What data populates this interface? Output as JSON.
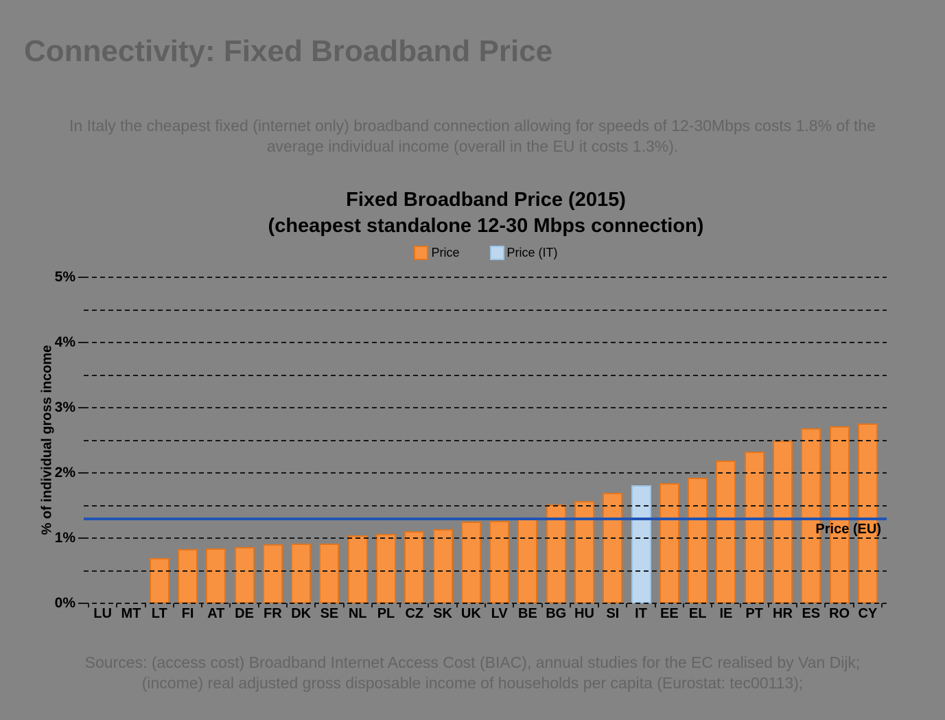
{
  "page": {
    "title": "Connectivity: Fixed Broadband Price",
    "intro_line1": "In Italy the cheapest fixed (internet only) broadband connection allowing for speeds of 12-30Mbps costs 1.8% of the",
    "intro_line2": "average individual income (overall in the EU it costs 1.3%).",
    "sources_line1": "Sources: (access cost) Broadband Internet Access Cost (BIAC), annual studies for the EC realised by Van Dijk;",
    "sources_line2": "(income) real adjusted gross disposable income of households per capita (Eurostat: tec00113);"
  },
  "colors": {
    "background": "#848484",
    "title_text": "#606060",
    "body_text": "#646464",
    "chart_text": "#000000",
    "bar_fill": "#F89240",
    "bar_border": "#E2761F",
    "highlight_fill": "#BDD7EE",
    "highlight_border": "#9CC3E5",
    "eu_line": "#2153B4",
    "gridline": "#161616"
  },
  "chart_data": {
    "type": "bar",
    "title": "Fixed Broadband Price (2015)",
    "subtitle": "(cheapest standalone 12-30 Mbps connection)",
    "ylabel": "% of individual gross income",
    "xlabel": "",
    "ylim": [
      0,
      5
    ],
    "y_major_step": 1,
    "y_minor_step": 0.5,
    "y_tick_suffix": "%",
    "grid": "horizontal dashed, drawn over bars",
    "legend_position": "top center",
    "legend": [
      {
        "label": "Price",
        "swatch": "orange"
      },
      {
        "label": "Price (IT)",
        "swatch": "light-blue"
      }
    ],
    "categories": [
      "LU",
      "MT",
      "LT",
      "FI",
      "AT",
      "DE",
      "FR",
      "DK",
      "SE",
      "NL",
      "PL",
      "CZ",
      "SK",
      "UK",
      "LV",
      "BE",
      "BG",
      "HU",
      "SI",
      "IT",
      "EE",
      "EL",
      "IE",
      "PT",
      "HR",
      "ES",
      "RO",
      "CY"
    ],
    "series": [
      {
        "name": "Price",
        "values": [
          0,
          0,
          0.7,
          0.83,
          0.84,
          0.86,
          0.91,
          0.92,
          0.92,
          1.04,
          1.06,
          1.11,
          1.14,
          1.25,
          1.26,
          1.3,
          1.52,
          1.57,
          1.7,
          1.81,
          1.84,
          1.93,
          2.19,
          2.33,
          2.5,
          2.68,
          2.72,
          2.76
        ]
      }
    ],
    "highlight_category": "IT",
    "reference_line": {
      "label": "Price (EU)",
      "value": 1.3
    }
  }
}
